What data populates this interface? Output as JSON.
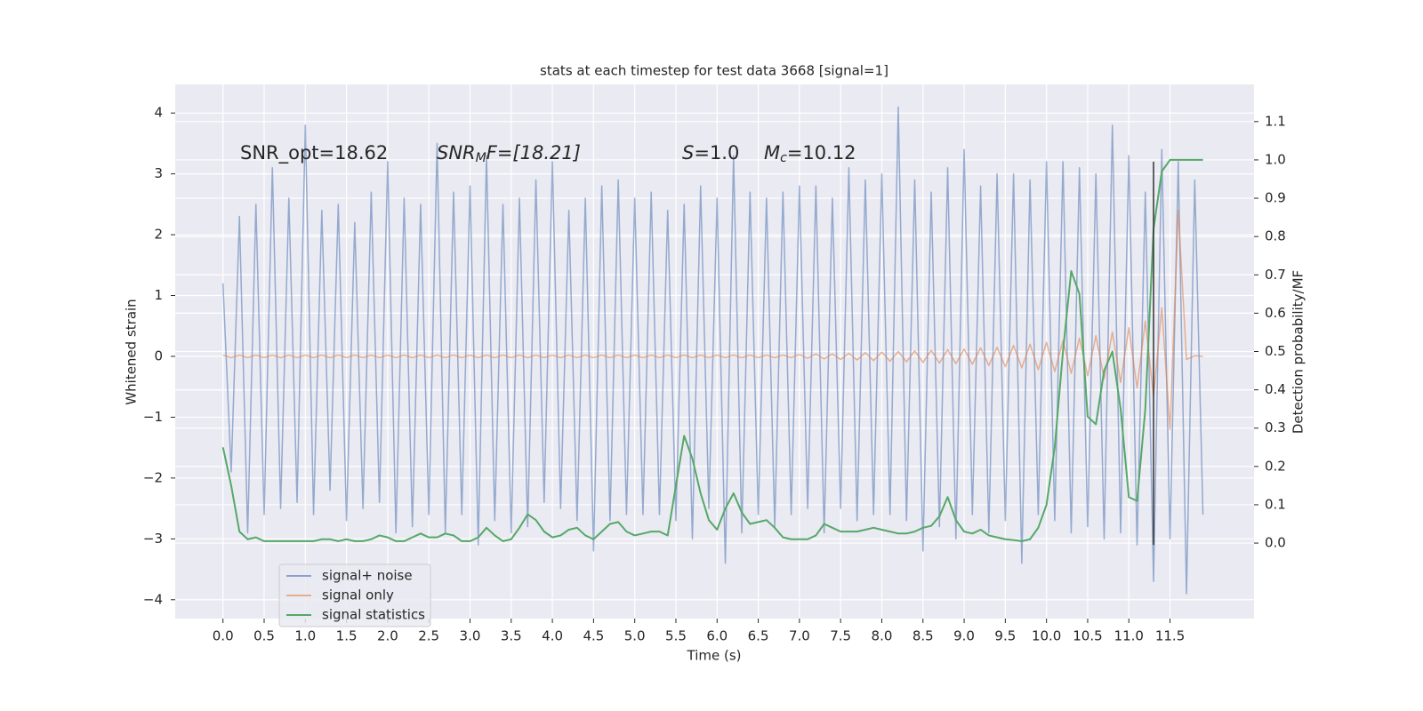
{
  "chart_data": {
    "type": "line",
    "title": "stats at each timestep for test data 3668 [signal=1]",
    "xlabel": "Time (s)",
    "ylabel": "Whitened strain",
    "y2label": "Detection probability/MF",
    "annotations": [
      {
        "main": "SNR_opt=18.62"
      },
      {
        "main": "SNR",
        "sub": "M",
        "rest": "F=[18.21]"
      },
      {
        "main": "S",
        "rest": "=1.0"
      },
      {
        "main": "M",
        "sub": "c",
        "rest": "=10.12"
      }
    ],
    "x": [
      0.0,
      0.1,
      0.2,
      0.3,
      0.4,
      0.5,
      0.6,
      0.7,
      0.8,
      0.9,
      1.0,
      1.1,
      1.2,
      1.3,
      1.4,
      1.5,
      1.6,
      1.7,
      1.8,
      1.9,
      2.0,
      2.1,
      2.2,
      2.3,
      2.4,
      2.5,
      2.6,
      2.7,
      2.8,
      2.9,
      3.0,
      3.1,
      3.2,
      3.3,
      3.4,
      3.5,
      3.6,
      3.7,
      3.8,
      3.9,
      4.0,
      4.1,
      4.2,
      4.3,
      4.4,
      4.5,
      4.6,
      4.7,
      4.8,
      4.9,
      5.0,
      5.1,
      5.2,
      5.3,
      5.4,
      5.5,
      5.6,
      5.7,
      5.8,
      5.9,
      6.0,
      6.1,
      6.2,
      6.3,
      6.4,
      6.5,
      6.6,
      6.7,
      6.8,
      6.9,
      7.0,
      7.1,
      7.2,
      7.3,
      7.4,
      7.5,
      7.6,
      7.7,
      7.8,
      7.9,
      8.0,
      8.1,
      8.2,
      8.3,
      8.4,
      8.5,
      8.6,
      8.7,
      8.8,
      8.9,
      9.0,
      9.1,
      9.2,
      9.3,
      9.4,
      9.5,
      9.6,
      9.7,
      9.8,
      9.9,
      10.0,
      10.1,
      10.2,
      10.3,
      10.4,
      10.5,
      10.6,
      10.7,
      10.8,
      10.9,
      11.0,
      11.1,
      11.2,
      11.3,
      11.4,
      11.5,
      11.6,
      11.7,
      11.8,
      11.9
    ],
    "series": [
      {
        "name": "signal+ noise",
        "color": "#4c72b0",
        "values": [
          1.2,
          -1.9,
          2.3,
          -2.9,
          2.5,
          -2.6,
          3.1,
          -2.5,
          2.6,
          -2.4,
          3.8,
          -2.6,
          2.4,
          -2.2,
          2.5,
          -2.7,
          2.2,
          -2.5,
          2.7,
          -2.4,
          3.2,
          -2.9,
          2.6,
          -2.8,
          2.5,
          -2.6,
          3.5,
          -2.9,
          2.7,
          -2.6,
          2.8,
          -3.1,
          3.3,
          -2.7,
          2.5,
          -2.9,
          2.6,
          -2.8,
          2.9,
          -2.4,
          3.2,
          -2.5,
          2.4,
          -2.7,
          2.6,
          -3.2,
          2.8,
          -2.7,
          2.9,
          -2.6,
          2.6,
          -2.6,
          2.7,
          -2.6,
          2.4,
          -2.7,
          2.5,
          -3.0,
          2.8,
          -2.5,
          2.6,
          -3.4,
          3.3,
          -2.9,
          2.7,
          -2.6,
          2.6,
          -2.8,
          2.7,
          -2.6,
          2.8,
          -2.5,
          2.8,
          -2.9,
          2.6,
          -2.5,
          3.1,
          -2.7,
          2.9,
          -2.6,
          3.0,
          -2.6,
          4.1,
          -2.7,
          2.9,
          -3.2,
          2.7,
          -2.8,
          3.1,
          -3.0,
          3.4,
          -2.6,
          2.8,
          -2.9,
          3.0,
          -2.7,
          3.0,
          -3.4,
          2.9,
          -2.6,
          3.2,
          -2.7,
          3.2,
          -2.9,
          3.1,
          -2.8,
          3.0,
          -3.0,
          3.8,
          -2.9,
          3.3,
          -3.1,
          2.7,
          -3.7,
          3.4,
          -3.0,
          3.2,
          -3.9,
          2.9,
          -2.6
        ]
      },
      {
        "name": "signal only",
        "color": "#dd8452",
        "values": [
          0.02,
          -0.02,
          0.02,
          -0.02,
          0.02,
          -0.02,
          0.02,
          -0.02,
          0.02,
          -0.02,
          0.02,
          -0.02,
          0.02,
          -0.02,
          0.02,
          -0.02,
          0.02,
          -0.02,
          0.02,
          -0.02,
          0.02,
          -0.02,
          0.02,
          -0.02,
          0.02,
          -0.02,
          0.02,
          -0.02,
          0.02,
          -0.02,
          0.02,
          -0.02,
          0.02,
          -0.02,
          0.02,
          -0.02,
          0.02,
          -0.02,
          0.02,
          -0.02,
          0.02,
          -0.02,
          0.02,
          -0.02,
          0.02,
          -0.02,
          0.02,
          -0.02,
          0.02,
          -0.02,
          0.02,
          -0.02,
          0.02,
          -0.02,
          0.02,
          -0.02,
          0.02,
          -0.02,
          0.02,
          -0.02,
          0.02,
          -0.02,
          0.02,
          -0.02,
          0.02,
          -0.02,
          0.02,
          -0.02,
          0.02,
          -0.02,
          0.03,
          -0.03,
          0.04,
          -0.04,
          0.04,
          -0.05,
          0.05,
          -0.06,
          0.06,
          -0.07,
          0.07,
          -0.08,
          0.08,
          -0.09,
          0.09,
          -0.1,
          0.1,
          -0.11,
          0.11,
          -0.12,
          0.12,
          -0.13,
          0.14,
          -0.15,
          0.15,
          -0.17,
          0.18,
          -0.19,
          0.2,
          -0.22,
          0.23,
          -0.25,
          0.26,
          -0.28,
          0.3,
          -0.32,
          0.34,
          -0.37,
          0.4,
          -0.43,
          0.47,
          -0.52,
          0.58,
          -0.66,
          0.8,
          -1.2,
          2.4,
          -0.05,
          0.01,
          0.0
        ]
      },
      {
        "name": "signal statistics",
        "color": "#55a868",
        "axis": "y2",
        "values": [
          0.25,
          0.15,
          0.03,
          0.01,
          0.015,
          0.005,
          0.005,
          0.005,
          0.005,
          0.005,
          0.005,
          0.005,
          0.01,
          0.01,
          0.005,
          0.01,
          0.005,
          0.005,
          0.01,
          0.02,
          0.015,
          0.005,
          0.005,
          0.015,
          0.025,
          0.015,
          0.015,
          0.025,
          0.02,
          0.005,
          0.005,
          0.015,
          0.04,
          0.02,
          0.005,
          0.01,
          0.04,
          0.075,
          0.06,
          0.03,
          0.015,
          0.02,
          0.035,
          0.04,
          0.02,
          0.01,
          0.03,
          0.05,
          0.055,
          0.03,
          0.02,
          0.025,
          0.03,
          0.03,
          0.02,
          0.15,
          0.28,
          0.22,
          0.13,
          0.06,
          0.035,
          0.09,
          0.13,
          0.08,
          0.05,
          0.055,
          0.06,
          0.04,
          0.015,
          0.01,
          0.01,
          0.01,
          0.02,
          0.05,
          0.04,
          0.03,
          0.03,
          0.03,
          0.035,
          0.04,
          0.035,
          0.03,
          0.025,
          0.025,
          0.03,
          0.04,
          0.045,
          0.07,
          0.12,
          0.06,
          0.03,
          0.025,
          0.035,
          0.02,
          0.015,
          0.01,
          0.008,
          0.005,
          0.01,
          0.04,
          0.1,
          0.25,
          0.5,
          0.71,
          0.65,
          0.33,
          0.31,
          0.45,
          0.5,
          0.35,
          0.12,
          0.11,
          0.35,
          0.82,
          0.97,
          1.0,
          1.0,
          1.0,
          1.0,
          1.0
        ]
      }
    ],
    "vline": {
      "x": 11.3,
      "ymin": -3.1,
      "ymax": 3.2,
      "color": "#333333"
    },
    "xlim": [
      -0.58,
      12.52
    ],
    "ylim": [
      -4.31,
      4.47
    ],
    "y2lim": [
      -0.197,
      1.197
    ],
    "xticks": [
      {
        "value": 0,
        "label": "0.0"
      },
      {
        "value": 0.5,
        "label": "0.5"
      },
      {
        "value": 1,
        "label": "1.0"
      },
      {
        "value": 1.5,
        "label": "1.5"
      },
      {
        "value": 2,
        "label": "2.0"
      },
      {
        "value": 2.5,
        "label": "2.5"
      },
      {
        "value": 3,
        "label": "3.0"
      },
      {
        "value": 3.5,
        "label": "3.5"
      },
      {
        "value": 4,
        "label": "4.0"
      },
      {
        "value": 4.5,
        "label": "4.5"
      },
      {
        "value": 5,
        "label": "5.0"
      },
      {
        "value": 5.5,
        "label": "5.5"
      },
      {
        "value": 6,
        "label": "6.0"
      },
      {
        "value": 6.5,
        "label": "6.5"
      },
      {
        "value": 7,
        "label": "7.0"
      },
      {
        "value": 7.5,
        "label": "7.5"
      },
      {
        "value": 8,
        "label": "8.0"
      },
      {
        "value": 8.5,
        "label": "8.5"
      },
      {
        "value": 9,
        "label": "9.0"
      },
      {
        "value": 9.5,
        "label": "9.5"
      },
      {
        "value": 10,
        "label": "10.0"
      },
      {
        "value": 10.5,
        "label": "10.5"
      },
      {
        "value": 11,
        "label": "11.0"
      },
      {
        "value": 11.5,
        "label": "11.5"
      }
    ],
    "yticks": [
      {
        "value": -4,
        "label": "−4"
      },
      {
        "value": -3,
        "label": "−3"
      },
      {
        "value": -2,
        "label": "−2"
      },
      {
        "value": -1,
        "label": "−1"
      },
      0,
      1,
      2,
      3,
      4
    ],
    "y2ticks": [
      {
        "value": 0,
        "label": "0.0"
      },
      {
        "value": 0.1,
        "label": "0.1"
      },
      {
        "value": 0.2,
        "label": "0.2"
      },
      {
        "value": 0.3,
        "label": "0.3"
      },
      {
        "value": 0.4,
        "label": "0.4"
      },
      {
        "value": 0.5,
        "label": "0.5"
      },
      {
        "value": 0.6,
        "label": "0.6"
      },
      {
        "value": 0.7,
        "label": "0.7"
      },
      {
        "value": 0.8,
        "label": "0.8"
      },
      {
        "value": 0.9,
        "label": "0.9"
      },
      {
        "value": 1,
        "label": "1.0"
      },
      {
        "value": 1.1,
        "label": "1.1"
      }
    ],
    "grid": true,
    "legend": "lower left"
  }
}
